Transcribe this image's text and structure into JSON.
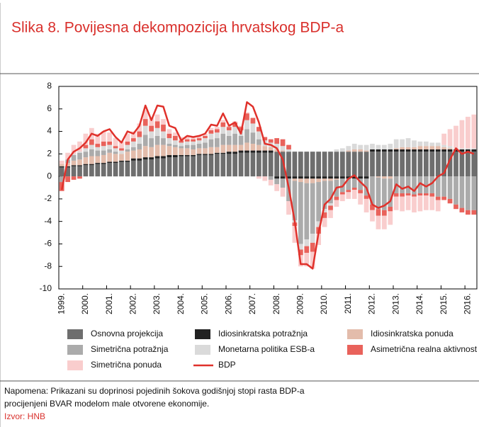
{
  "chart_data": {
    "type": "bar",
    "stacked": true,
    "title": "Slika 8. Povijesna dekompozicija hrvatskog BDP-a",
    "categories": [
      "1999.",
      null,
      null,
      null,
      "2000.",
      null,
      null,
      null,
      "2001.",
      null,
      null,
      null,
      "2002.",
      null,
      null,
      null,
      "2003.",
      null,
      null,
      null,
      "2004.",
      null,
      null,
      null,
      "2005.",
      null,
      null,
      null,
      "2006.",
      null,
      null,
      null,
      "2007.",
      null,
      null,
      null,
      "2008.",
      null,
      null,
      null,
      "2009.",
      null,
      null,
      null,
      "2010.",
      null,
      null,
      null,
      "2011.",
      null,
      null,
      null,
      "2012.",
      null,
      null,
      null,
      "2013.",
      null,
      null,
      null,
      "2014.",
      null,
      null,
      null,
      "2015.",
      null,
      null,
      null,
      "2016.",
      null
    ],
    "ylim": [
      -10,
      8
    ],
    "yticks": [
      -10,
      -8,
      -6,
      -4,
      -2,
      0,
      2,
      4,
      6,
      8
    ],
    "grid": false,
    "series": [
      {
        "name": "Osnovna projekcija",
        "color": "#6e6e6e",
        "values": [
          0.8,
          0.8,
          0.9,
          0.9,
          1.0,
          1.0,
          1.1,
          1.1,
          1.2,
          1.2,
          1.3,
          1.3,
          1.4,
          1.4,
          1.5,
          1.5,
          1.6,
          1.6,
          1.7,
          1.7,
          1.8,
          1.8,
          1.8,
          1.9,
          1.9,
          1.9,
          2.0,
          2.0,
          2.0,
          2.0,
          2.1,
          2.1,
          2.1,
          2.1,
          2.1,
          2.1,
          2.2,
          2.2,
          2.2,
          2.2,
          2.2,
          2.2,
          2.2,
          2.2,
          2.2,
          2.2,
          2.2,
          2.2,
          2.2,
          2.2,
          2.2,
          2.2,
          2.2,
          2.2,
          2.2,
          2.2,
          2.2,
          2.2,
          2.2,
          2.2,
          2.2,
          2.2,
          2.2,
          2.2,
          2.2,
          2.2,
          2.2,
          2.2,
          2.2,
          2.2
        ]
      },
      {
        "name": "Idiosinkratska potražnja",
        "color": "#222222",
        "values": [
          0.1,
          0.1,
          0.1,
          0.1,
          0.1,
          0.1,
          0.1,
          0.1,
          0.1,
          0.1,
          0.1,
          0.1,
          0.2,
          0.2,
          0.2,
          0.2,
          0.2,
          0.2,
          0.2,
          0.2,
          0.1,
          0.1,
          0.1,
          0.1,
          0.1,
          0.1,
          0.1,
          0.1,
          0.2,
          0.2,
          0.2,
          0.2,
          0.2,
          0.2,
          0.2,
          0.2,
          -0.2,
          -0.2,
          -0.2,
          -0.2,
          -0.2,
          -0.2,
          -0.2,
          -0.2,
          -0.2,
          -0.2,
          -0.2,
          -0.2,
          -0.2,
          -0.2,
          -0.2,
          -0.2,
          0.2,
          0.2,
          0.2,
          0.2,
          0.2,
          0.2,
          0.2,
          0.2,
          0.2,
          0.2,
          0.2,
          0.2,
          0.2,
          0.2,
          0.2,
          0.2,
          0.2,
          0.2
        ]
      },
      {
        "name": "Idiosinkratska ponuda",
        "color": "#e3bcab",
        "values": [
          0.2,
          0.3,
          0.4,
          0.5,
          0.6,
          0.7,
          0.6,
          0.7,
          0.8,
          0.7,
          0.6,
          0.8,
          0.7,
          0.8,
          1.0,
          0.9,
          1.0,
          1.0,
          0.8,
          0.7,
          0.6,
          0.6,
          0.5,
          0.5,
          0.5,
          0.6,
          0.5,
          0.7,
          0.6,
          0.6,
          0.5,
          0.7,
          0.6,
          0.5,
          0.4,
          0.3,
          0.2,
          0.1,
          0,
          -0.2,
          -0.3,
          -0.4,
          -0.4,
          -0.3,
          -0.2,
          -0.2,
          -0.1,
          0,
          0.1,
          0.2,
          0.2,
          0.1,
          0,
          -0.1,
          -0.2,
          -0.2,
          0.1,
          0.2,
          0.2,
          0.2,
          0.3,
          0.3,
          0.3,
          0.3,
          0.2,
          0.1,
          0,
          0,
          0,
          0
        ]
      },
      {
        "name": "Simetrična potražnja",
        "color": "#ababab",
        "values": [
          -0.5,
          0.3,
          0.5,
          0.6,
          0.5,
          0.6,
          0.5,
          0.4,
          0.3,
          0.2,
          0,
          0.2,
          0.3,
          0.5,
          1.0,
          0.8,
          0.8,
          0.6,
          0.2,
          0.2,
          0.2,
          0.3,
          0.4,
          0.4,
          0.5,
          0.7,
          0.8,
          1.0,
          0.8,
          1.0,
          0.8,
          1.2,
          1.0,
          0.5,
          0,
          -0.3,
          -0.5,
          -0.8,
          -2.0,
          -3.5,
          -5.5,
          -5.0,
          -4.5,
          -3.5,
          -2.5,
          -2.0,
          -1.5,
          -1.2,
          -1.0,
          -0.8,
          -1.0,
          -1.5,
          -2.5,
          -2.8,
          -2.8,
          -2.5,
          -1.5,
          -1.5,
          -1.5,
          -1.6,
          -1.5,
          -1.5,
          -1.5,
          -1.8,
          -1.8,
          -2.0,
          -2.5,
          -2.8,
          -3.0,
          -3.0
        ]
      },
      {
        "name": "Monetarna politika ESB-a",
        "color": "#dadada",
        "values": [
          0,
          0,
          0.1,
          0.1,
          0.3,
          0.4,
          0.3,
          0.4,
          0.4,
          0.3,
          0.3,
          0.4,
          0.5,
          0.6,
          0.8,
          0.6,
          0.7,
          0.6,
          0.5,
          0.4,
          0.3,
          0.3,
          0.3,
          0.3,
          0.4,
          0.5,
          0.5,
          0.6,
          0.5,
          0.6,
          0.5,
          0.8,
          0.8,
          0.7,
          0.5,
          0.4,
          0.5,
          0.4,
          0.2,
          -0.2,
          -0.5,
          -0.6,
          -0.8,
          -0.5,
          -0.3,
          -0.2,
          0.2,
          0.3,
          0.4,
          0.5,
          0.4,
          0.5,
          0.5,
          0.4,
          0.4,
          0.5,
          0.8,
          0.7,
          0.8,
          0.6,
          0.4,
          0.4,
          0.3,
          0.3,
          0.2,
          0.2,
          0.1,
          0.1,
          0.1,
          0.1
        ]
      },
      {
        "name": "Asimetrična realna aktivnost",
        "color": "#e9625b",
        "values": [
          -0.8,
          -0.5,
          -0.3,
          -0.2,
          0.3,
          0.5,
          0.3,
          0.4,
          0.3,
          0.2,
          0.2,
          0.3,
          0.3,
          0.5,
          0.6,
          0.5,
          0.6,
          0.6,
          0.4,
          0.4,
          0.2,
          0.2,
          0.2,
          0.2,
          0.2,
          0.3,
          0.3,
          0.4,
          0.3,
          0.4,
          0.3,
          0.6,
          0.5,
          0.4,
          0.3,
          0.3,
          0.5,
          0.6,
          0.4,
          -0.3,
          -0.5,
          -0.6,
          -0.8,
          -0.6,
          -0.5,
          -0.4,
          -0.3,
          -0.2,
          -0.2,
          -0.2,
          -0.3,
          -0.3,
          -0.5,
          -0.6,
          -0.5,
          -0.4,
          -0.3,
          -0.3,
          -0.2,
          -0.2,
          -0.2,
          -0.2,
          -0.3,
          -0.3,
          -0.3,
          -0.4,
          -0.4,
          -0.4,
          -0.4,
          -0.4
        ]
      },
      {
        "name": "Simetrična ponuda",
        "color": "#f9cdcd",
        "values": [
          0.3,
          0.6,
          0.8,
          0.9,
          1.0,
          1.0,
          0.9,
          0.9,
          0.8,
          0.7,
          0.6,
          0.7,
          0.6,
          0.7,
          0.8,
          0.7,
          0.6,
          0.5,
          0.4,
          0.3,
          0.3,
          0.3,
          0.2,
          0.2,
          0.2,
          0.2,
          0.2,
          0.2,
          0.1,
          0.1,
          0.1,
          0.1,
          0,
          -0.2,
          -0.4,
          -0.5,
          -0.6,
          -0.8,
          -1.2,
          -1.5,
          -1.0,
          -1.2,
          -1.5,
          -1.0,
          -0.8,
          -0.7,
          -0.6,
          -0.6,
          -0.6,
          -0.8,
          -1.0,
          -1.2,
          -1.0,
          -1.2,
          -1.2,
          -1.2,
          -1.2,
          -1.3,
          -1.3,
          -1.4,
          -1.4,
          -1.3,
          -1.2,
          -1.0,
          1.0,
          1.5,
          2.0,
          2.5,
          2.8,
          3.0
        ]
      },
      {
        "name": "BDP",
        "type": "line",
        "color": "#e0312b",
        "values": [
          -1.2,
          1.5,
          2.2,
          2.5,
          3.0,
          3.8,
          3.6,
          4.0,
          4.2,
          3.5,
          3.0,
          4.0,
          3.8,
          4.5,
          6.3,
          5.0,
          6.3,
          6.2,
          4.5,
          4.3,
          3.2,
          3.6,
          3.5,
          3.6,
          3.8,
          4.6,
          4.5,
          5.6,
          4.5,
          4.8,
          3.8,
          6.6,
          6.2,
          4.8,
          2.9,
          2.8,
          2.5,
          1.5,
          -1.0,
          -4.0,
          -7.8,
          -7.8,
          -8.2,
          -5.0,
          -2.5,
          -2.0,
          -1.0,
          -0.9,
          -0.2,
          0.1,
          -0.5,
          -1.0,
          -2.5,
          -2.8,
          -2.6,
          -2.2,
          -0.7,
          -1.1,
          -0.9,
          -1.3,
          -0.6,
          -0.9,
          -0.6,
          0.0,
          0.3,
          1.5,
          2.5,
          2.0,
          2.2,
          2.0
        ]
      }
    ],
    "notes": [
      "Napomena: Prikazani su doprinosi pojedinih šokova godišnjoj stopi rasta BDP-a",
      "procijenjeni BVAR modelom male otvorene ekonomije."
    ],
    "source": "Izvor: HNB"
  }
}
